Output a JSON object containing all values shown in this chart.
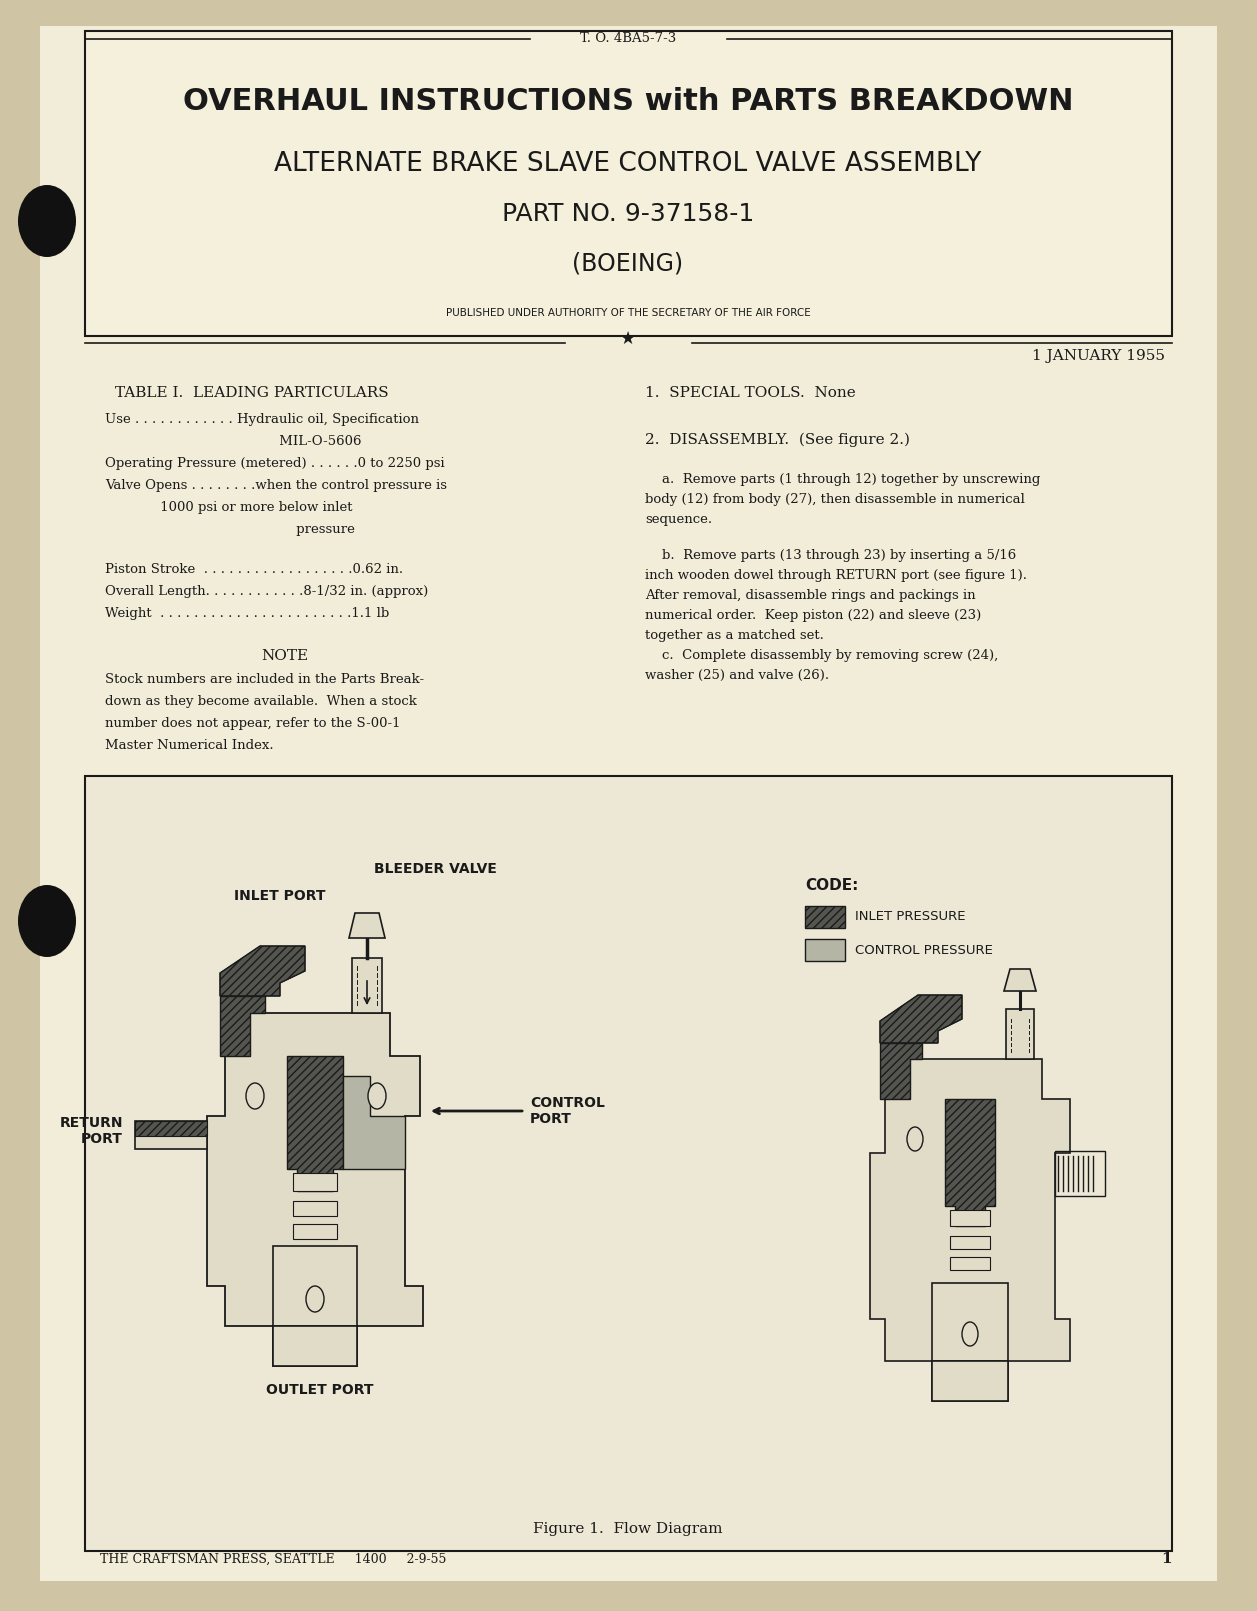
{
  "bg_color": "#cfc5a5",
  "page_bg": "#f2edd8",
  "inner_bg": "#f5f0dc",
  "border_color": "#1a1a1a",
  "text_color": "#1a1a1a",
  "to_number": "T. O. 4BA5-7-3",
  "title_line1": "OVERHAUL INSTRUCTIONS with PARTS BREAKDOWN",
  "title_line2": "ALTERNATE BRAKE SLAVE CONTROL VALVE ASSEMBLY",
  "title_line3": "PART NO. 9-37158-1",
  "title_line4": "(BOEING)",
  "authority_text": "PUBLISHED UNDER AUTHORITY OF THE SECRETARY OF THE AIR FORCE",
  "date_text": "1 JANUARY 1955",
  "table_title": "TABLE I.  LEADING PARTICULARS",
  "special_tools_header": "1.  SPECIAL TOOLS.  None",
  "disassembly_header": "2.  DISASSEMBLY.  (See figure 2.)",
  "figure_caption": "Figure 1.  Flow Diagram",
  "footer_text": "THE CRAFTSMAN PRESS, SEATTLE     1400     2-9-55",
  "page_number": "1",
  "code_label": "CODE:",
  "code_inlet": "INLET PRESSURE",
  "code_control": "CONTROL PRESSURE",
  "label_inlet_port": "INLET PORT",
  "label_bleeder": "BLEEDER VALVE",
  "label_return_port": "RETURN\nPORT",
  "label_outlet_port": "OUTLET PORT",
  "label_control_port": "CONTROL\nPORT"
}
